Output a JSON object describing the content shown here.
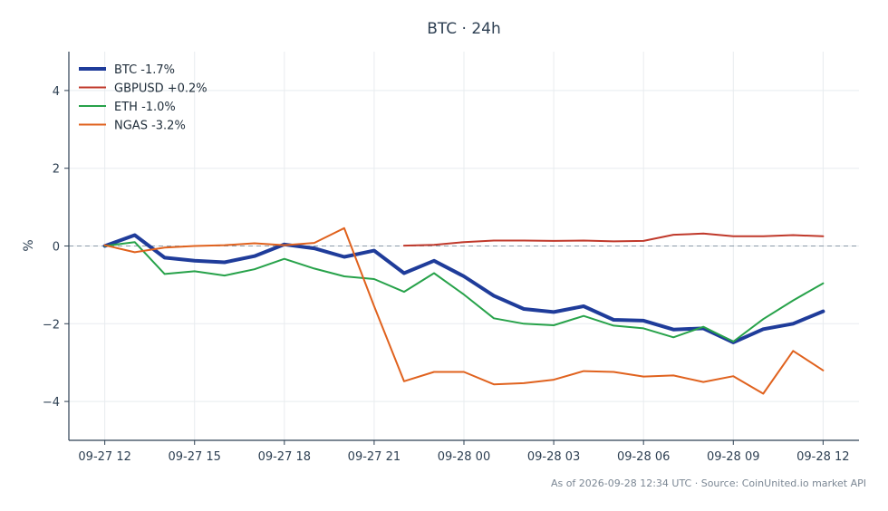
{
  "chart_data": {
    "type": "line",
    "title": "BTC · 24h",
    "xlabel": "",
    "ylabel": "%",
    "ylim": [
      -5,
      5
    ],
    "yticks": [
      -4,
      -2,
      0,
      2,
      4
    ],
    "ytick_labels": [
      "−4",
      "−2",
      "0",
      "2",
      "4"
    ],
    "xticks": [
      {
        "x": 0,
        "label": "09-27 12"
      },
      {
        "x": 3,
        "label": "09-27 15"
      },
      {
        "x": 6,
        "label": "09-27 18"
      },
      {
        "x": 9,
        "label": "09-27 21"
      },
      {
        "x": 12,
        "label": "09-28 00"
      },
      {
        "x": 15,
        "label": "09-28 03"
      },
      {
        "x": 18,
        "label": "09-28 06"
      },
      {
        "x": 21,
        "label": "09-28 09"
      },
      {
        "x": 24,
        "label": "09-28 12"
      }
    ],
    "x": [
      0,
      1,
      2,
      3,
      4,
      5,
      6,
      7,
      8,
      9,
      10,
      11,
      12,
      13,
      14,
      15,
      16,
      17,
      18,
      19,
      20,
      21,
      22,
      23,
      24
    ],
    "xlim": [
      -1.2,
      25.2
    ],
    "grid": true,
    "reference_line": 0,
    "legend_position": "top-left",
    "series": [
      {
        "name": "BTC -1.7%",
        "color": "#1f3c9a",
        "width": 4,
        "values": [
          0.0,
          0.28,
          -0.3,
          -0.38,
          -0.42,
          -0.26,
          0.04,
          -0.06,
          -0.28,
          -0.12,
          -0.7,
          -0.38,
          -0.78,
          -1.28,
          -1.62,
          -1.7,
          -1.55,
          -1.9,
          -1.92,
          -2.15,
          -2.12,
          -2.48,
          -2.14,
          -2.0,
          -1.68
        ]
      },
      {
        "name": "GBPUSD +0.2%",
        "color": "#c0392b",
        "width": 2,
        "values": [
          null,
          null,
          null,
          null,
          null,
          null,
          null,
          null,
          null,
          null,
          0.01,
          0.03,
          0.1,
          0.14,
          0.14,
          0.13,
          0.14,
          0.12,
          0.13,
          0.29,
          0.32,
          0.25,
          0.25,
          0.28,
          0.25
        ]
      },
      {
        "name": "ETH -1.0%",
        "color": "#27a24a",
        "width": 2,
        "values": [
          0.0,
          0.1,
          -0.72,
          -0.65,
          -0.76,
          -0.6,
          -0.33,
          -0.58,
          -0.78,
          -0.85,
          -1.18,
          -0.7,
          -1.25,
          -1.86,
          -2.0,
          -2.04,
          -1.8,
          -2.05,
          -2.12,
          -2.35,
          -2.08,
          -2.46,
          -1.88,
          -1.4,
          -0.96
        ]
      },
      {
        "name": "NGAS -3.2%",
        "color": "#e0621e",
        "width": 2,
        "values": [
          0.02,
          -0.16,
          -0.04,
          0.0,
          0.02,
          0.07,
          0.02,
          0.08,
          0.46,
          -1.55,
          -3.48,
          -3.24,
          -3.24,
          -3.56,
          -3.53,
          -3.44,
          -3.22,
          -3.24,
          -3.36,
          -3.33,
          -3.5,
          -3.35,
          -3.8,
          -2.7,
          -3.2
        ]
      }
    ]
  },
  "footer": "As of 2026-09-28 12:34 UTC · Source: CoinUnited.io market API"
}
